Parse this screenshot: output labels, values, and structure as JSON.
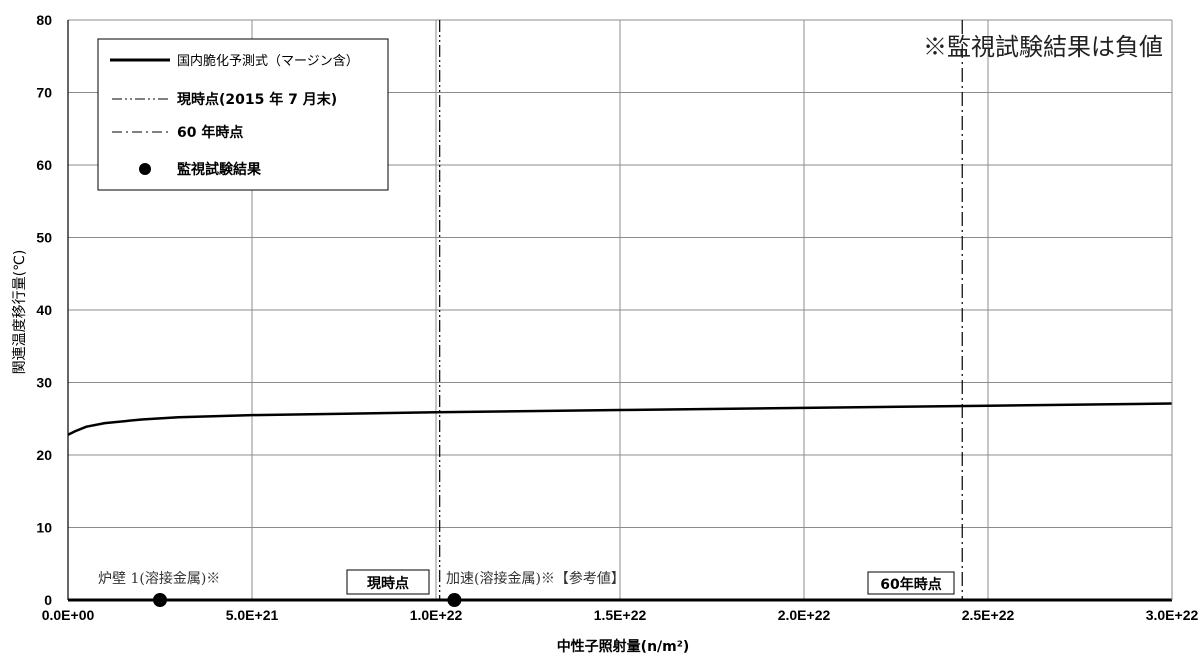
{
  "chart_data": {
    "type": "line",
    "note": "※監視試験結果は負値",
    "xlabel": "中性子照射量(n/m²)",
    "ylabel": "関連温度移行量(℃)",
    "xlim": [
      0,
      3e+22
    ],
    "ylim": [
      0,
      80
    ],
    "grid": true,
    "legend_position": "top-left",
    "x_tick_values": [
      0,
      5e+21,
      1e+22,
      1.5e+22,
      2e+22,
      2.5e+22,
      3e+22
    ],
    "x_tick_labels": [
      "0.0E+00",
      "5.0E+21",
      "1.0E+22",
      "1.5E+22",
      "2.0E+22",
      "2.5E+22",
      "3.0E+22"
    ],
    "y_tick_values": [
      0,
      10,
      20,
      30,
      40,
      50,
      60,
      70,
      80
    ],
    "y_tick_labels": [
      "0",
      "10",
      "20",
      "30",
      "40",
      "50",
      "60",
      "70",
      "80"
    ],
    "legend": [
      {
        "label": "国内脆化予測式（マージン含）",
        "style": "solid"
      },
      {
        "label": "現時点(2015 年 7 月末)",
        "style": "dash-dot-dot"
      },
      {
        "label": "60 年時点",
        "style": "dash-dot"
      },
      {
        "label": "監視試験結果",
        "style": "marker"
      }
    ],
    "series": [
      {
        "name": "国内脆化予測式（マージン含）",
        "x": [
          0,
          2e+20,
          5e+20,
          1e+21,
          2e+21,
          3e+21,
          5e+21,
          7.5e+21,
          1e+22,
          1.5e+22,
          2e+22,
          2.5e+22,
          3e+22
        ],
        "y": [
          22.8,
          23.3,
          23.9,
          24.4,
          24.9,
          25.2,
          25.5,
          25.7,
          25.9,
          26.2,
          26.5,
          26.8,
          27.1
        ]
      }
    ],
    "vlines": [
      {
        "label": "現時点",
        "x": 1.01e+22,
        "style": "dash-dot-dot"
      },
      {
        "label": "60年時点",
        "x": 2.43e+22,
        "style": "dash-dot"
      }
    ],
    "monitoring_points": [
      {
        "label": "炉壁 1(溶接金属)※",
        "x": 2.5e+21,
        "y": 0
      },
      {
        "label": "加速(溶接金属)※【参考値】",
        "x": 1.05e+22,
        "y": 0
      }
    ]
  },
  "colors": {
    "curve": "#000000",
    "grid": "#8c8c8c",
    "axis": "#000000",
    "marker": "#000000"
  },
  "icons": {
    "legend_marker": "filled-circle"
  }
}
